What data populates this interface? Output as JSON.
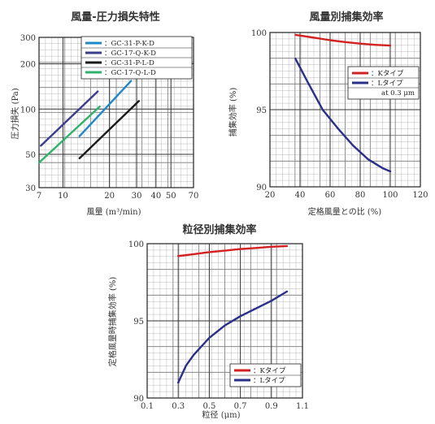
{
  "chart_data": [
    {
      "type": "line",
      "title": "風量-圧力損失特性",
      "xlabel": "風量 (m³/min)",
      "ylabel": "圧力損失 (Pa)",
      "xscale": "log",
      "yscale": "log",
      "xlim": [
        7,
        70
      ],
      "ylim": [
        30,
        300
      ],
      "xticks": [
        7,
        10,
        20,
        30,
        40,
        50,
        70
      ],
      "yticks": [
        30,
        50,
        100,
        200,
        300
      ],
      "grid": true,
      "legend_position": "top-right",
      "series": [
        {
          "name": "：GC-31-P-K-D",
          "color": "#1e88c8",
          "x": [
            12.8,
            27.6
          ],
          "y": [
            66,
            154
          ]
        },
        {
          "name": "：GC-17-Q-K-D",
          "color": "#3a3c8c",
          "x": [
            7.2,
            16.8
          ],
          "y": [
            57,
            131
          ]
        },
        {
          "name": "：GC-31-P-L-D",
          "color": "#1a1a1a",
          "x": [
            12.8,
            31
          ],
          "y": [
            47,
            113
          ]
        },
        {
          "name": "：GC-17-Q-L-D",
          "color": "#2fb36a",
          "x": [
            7.0,
            17.3
          ],
          "y": [
            44,
            104
          ]
        }
      ]
    },
    {
      "type": "line",
      "title": "風量別捕集効率",
      "xlabel": "定格風量との比 (%)",
      "ylabel": "捕集効率 (%)",
      "xlim": [
        20,
        120
      ],
      "ylim": [
        90,
        100
      ],
      "xticks": [
        20,
        40,
        60,
        80,
        100,
        120
      ],
      "yticks": [
        90,
        95,
        100
      ],
      "grid": true,
      "legend_position": "top-right",
      "annotation": "at 0.3 μm",
      "series": [
        {
          "name": "：Kタイプ",
          "color": "#d42020",
          "x": [
            37,
            50,
            60,
            70,
            80,
            90,
            100
          ],
          "y": [
            99.85,
            99.65,
            99.5,
            99.38,
            99.28,
            99.2,
            99.15
          ]
        },
        {
          "name": "：Lタイプ",
          "color": "#2a2f8a",
          "x": [
            37,
            45,
            55,
            65,
            75,
            85,
            95,
            100
          ],
          "y": [
            98.3,
            96.8,
            95.0,
            93.8,
            92.7,
            91.8,
            91.2,
            91.0
          ]
        }
      ]
    },
    {
      "type": "line",
      "title": "粒径別捕集効率",
      "xlabel": "粒径 (μm)",
      "ylabel": "定格風量時捕集効率 (%)",
      "xlim": [
        0.1,
        1.1
      ],
      "ylim": [
        90,
        100
      ],
      "xticks": [
        0.1,
        0.3,
        0.5,
        0.7,
        0.9,
        1.1
      ],
      "yticks": [
        90,
        95,
        100
      ],
      "grid": true,
      "legend_position": "bottom-right",
      "series": [
        {
          "name": "：Kタイプ",
          "color": "#d42020",
          "x": [
            0.3,
            0.4,
            0.5,
            0.6,
            0.7,
            0.8,
            0.9,
            1.0
          ],
          "y": [
            99.2,
            99.32,
            99.45,
            99.55,
            99.65,
            99.72,
            99.8,
            99.85
          ]
        },
        {
          "name": "：Lタイプ",
          "color": "#2a2f8a",
          "x": [
            0.3,
            0.35,
            0.4,
            0.5,
            0.6,
            0.7,
            0.8,
            0.9,
            1.0
          ],
          "y": [
            91.0,
            92.1,
            92.8,
            93.9,
            94.7,
            95.3,
            95.8,
            96.3,
            96.9
          ]
        }
      ]
    }
  ]
}
